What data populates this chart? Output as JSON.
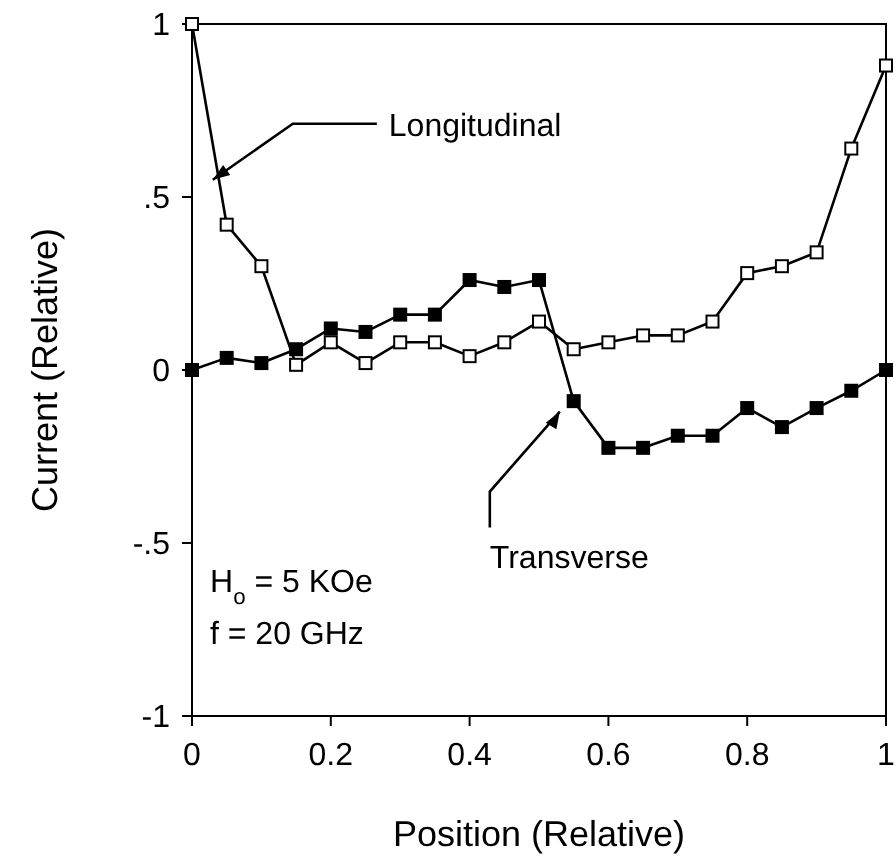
{
  "chart_data": {
    "type": "line",
    "xlabel": "Position (Relative)",
    "ylabel": "Current (Relative)",
    "x": [
      0,
      0.05,
      0.1,
      0.15,
      0.2,
      0.25,
      0.3,
      0.35,
      0.4,
      0.45,
      0.5,
      0.55,
      0.6,
      0.65,
      0.7,
      0.75,
      0.8,
      0.85,
      0.9,
      0.95,
      1
    ],
    "series": [
      {
        "color": "#000000",
        "values": [
          1.0,
          0.42,
          0.3,
          0.015,
          0.08,
          0.02,
          0.08,
          0.08,
          0.04,
          0.08,
          0.14,
          0.06,
          0.08,
          0.1,
          0.1,
          0.14,
          0.28,
          0.3,
          0.34,
          0.64,
          0.88
        ]
      },
      {
        "color": "#000000",
        "values": [
          0,
          0.035,
          0.02,
          0.06,
          0.12,
          0.11,
          0.16,
          0.16,
          0.26,
          0.24,
          0.26,
          -0.09,
          -0.225,
          -0.225,
          -0.19,
          -0.19,
          -0.11,
          -0.165,
          -0.11,
          -0.06,
          0
        ]
      }
    ],
    "xlim": [
      0,
      1
    ],
    "xticks": [
      0,
      0.2,
      0.4,
      0.6,
      0.8,
      1
    ],
    "ylim": [
      -1,
      1
    ],
    "yticks": [
      {
        "value": -1,
        "label": "-1"
      },
      {
        "value": -0.5,
        "label": "-.5"
      },
      0,
      {
        "value": 0.5,
        "label": ".5"
      },
      1
    ],
    "grid": false,
    "legend": false,
    "marker": "square",
    "line_style": "solid",
    "annotations": [
      {
        "text": "Longitudinal",
        "x": 0.03,
        "y": 0.55
      },
      {
        "text": "Transverse",
        "x": 0.53,
        "y": -0.12
      },
      "H$_{o}$ = 5 KOe",
      "f = 20 GHz"
    ]
  }
}
